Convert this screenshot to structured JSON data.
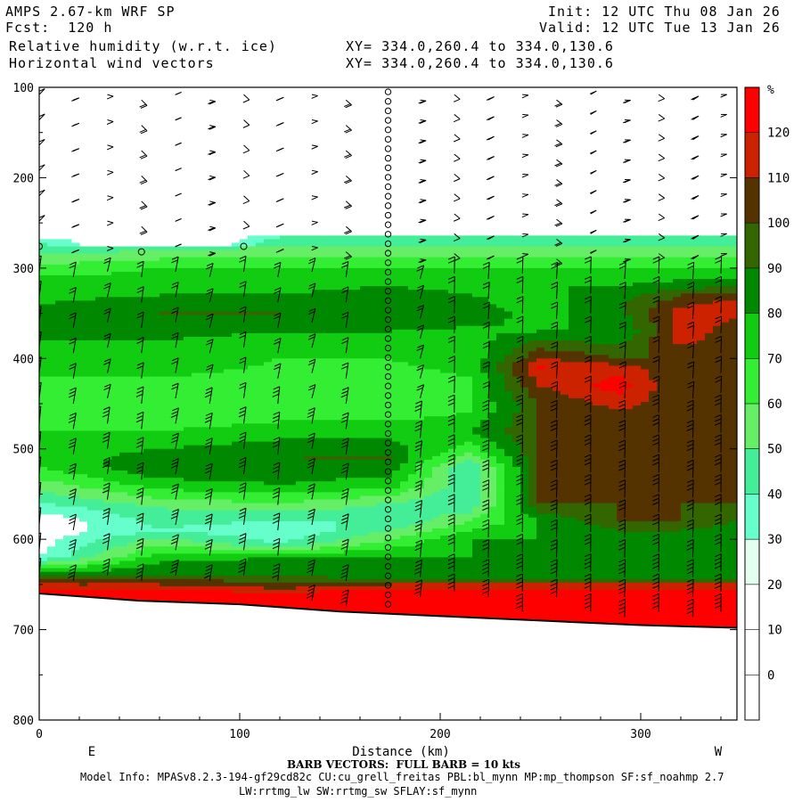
{
  "header": {
    "model": "AMPS 2.67-km WRF SP",
    "fcst": "Fcst:  120 h",
    "field1": "Relative humidity (w.r.t. ice)",
    "field2": "Horizontal wind vectors",
    "init": "Init: 12 UTC Thu 08 Jan 26",
    "valid": "Valid: 12 UTC Tue 13 Jan 26",
    "xy1": "XY= 334.0,260.4 to 334.0,130.6",
    "xy2": "XY= 334.0,260.4 to 334.0,130.6"
  },
  "footer": {
    "barb": "BARB VECTORS:  FULL BARB = 10 kts",
    "model_info": "Model Info: MPASv8.2.3-194-gf29cd82c CU:cu_grell_freitas PBL:bl_mynn MP:mp_thompson SF:sf_noahmp 2.7",
    "model_info2": "LW:rrtmg_lw SW:rrtmg_sw SFLAY:sf_mynn"
  },
  "chart_data": {
    "type": "heatmap",
    "xlabel": "Distance (km)",
    "ylabel": "",
    "x_left_label": "E",
    "x_right_label": "W",
    "xlim": [
      0,
      348
    ],
    "ylim": [
      800,
      100
    ],
    "xticks": [
      0,
      100,
      200,
      300
    ],
    "yticks": [
      100,
      200,
      300,
      400,
      500,
      600,
      700,
      800
    ],
    "colorbar": {
      "unit": "%",
      "levels": [
        0,
        10,
        20,
        30,
        40,
        50,
        60,
        70,
        80,
        90,
        100,
        110,
        120
      ],
      "colors": [
        "#ffffff",
        "#ffffff",
        "#ffffff",
        "#e4fff0",
        "#66ffcc",
        "#44ee99",
        "#66ee66",
        "#33ee33",
        "#11cc11",
        "#008800",
        "#336600",
        "#553300",
        "#cc2200",
        "#ff0000"
      ]
    },
    "rh_profile_note": "",
    "rh_columns": [
      {
        "x": 0,
        "layers": [
          [
            270,
            40
          ],
          [
            290,
            55
          ],
          [
            310,
            70
          ],
          [
            340,
            80
          ],
          [
            360,
            90
          ],
          [
            390,
            75
          ],
          [
            420,
            70
          ],
          [
            460,
            65
          ],
          [
            500,
            75
          ],
          [
            520,
            70
          ],
          [
            560,
            40
          ],
          [
            580,
            20
          ],
          [
            620,
            30
          ],
          [
            640,
            90
          ],
          [
            650,
            110
          ],
          [
            660,
            130
          ]
        ]
      },
      {
        "x": 60,
        "layers": [
          [
            275,
            40
          ],
          [
            285,
            55
          ],
          [
            300,
            70
          ],
          [
            330,
            80
          ],
          [
            350,
            90
          ],
          [
            380,
            80
          ],
          [
            420,
            70
          ],
          [
            470,
            65
          ],
          [
            500,
            80
          ],
          [
            520,
            90
          ],
          [
            540,
            75
          ],
          [
            565,
            50
          ],
          [
            590,
            40
          ],
          [
            610,
            65
          ],
          [
            625,
            80
          ],
          [
            640,
            90
          ],
          [
            650,
            110
          ],
          [
            660,
            130
          ]
        ]
      },
      {
        "x": 120,
        "layers": [
          [
            265,
            40
          ],
          [
            280,
            55
          ],
          [
            300,
            70
          ],
          [
            330,
            80
          ],
          [
            350,
            90
          ],
          [
            370,
            80
          ],
          [
            400,
            70
          ],
          [
            460,
            65
          ],
          [
            490,
            80
          ],
          [
            510,
            90
          ],
          [
            540,
            80
          ],
          [
            570,
            50
          ],
          [
            590,
            30
          ],
          [
            605,
            40
          ],
          [
            620,
            80
          ],
          [
            640,
            90
          ],
          [
            655,
            110
          ],
          [
            665,
            130
          ]
        ]
      },
      {
        "x": 175,
        "layers": [
          [
            265,
            40
          ],
          [
            280,
            55
          ],
          [
            300,
            70
          ],
          [
            330,
            85
          ],
          [
            345,
            90
          ],
          [
            370,
            80
          ],
          [
            400,
            70
          ],
          [
            460,
            65
          ],
          [
            490,
            80
          ],
          [
            510,
            90
          ],
          [
            540,
            75
          ],
          [
            560,
            50
          ],
          [
            580,
            40
          ],
          [
            600,
            60
          ],
          [
            620,
            80
          ],
          [
            640,
            80
          ],
          [
            650,
            110
          ],
          [
            660,
            130
          ]
        ]
      },
      {
        "x": 215,
        "layers": [
          [
            265,
            40
          ],
          [
            280,
            55
          ],
          [
            300,
            70
          ],
          [
            330,
            80
          ],
          [
            350,
            85
          ],
          [
            380,
            75
          ],
          [
            420,
            70
          ],
          [
            460,
            70
          ],
          [
            480,
            80
          ],
          [
            500,
            65
          ],
          [
            520,
            40
          ],
          [
            560,
            40
          ],
          [
            580,
            60
          ],
          [
            600,
            80
          ],
          [
            640,
            80
          ],
          [
            650,
            110
          ],
          [
            660,
            130
          ]
        ]
      },
      {
        "x": 250,
        "layers": [
          [
            265,
            40
          ],
          [
            280,
            55
          ],
          [
            300,
            70
          ],
          [
            320,
            80
          ],
          [
            340,
            75
          ],
          [
            370,
            80
          ],
          [
            390,
            100
          ],
          [
            410,
            120
          ],
          [
            450,
            100
          ],
          [
            480,
            100
          ],
          [
            560,
            100
          ],
          [
            580,
            80
          ],
          [
            640,
            80
          ],
          [
            650,
            110
          ],
          [
            660,
            130
          ]
        ]
      },
      {
        "x": 290,
        "layers": [
          [
            265,
            40
          ],
          [
            280,
            55
          ],
          [
            300,
            70
          ],
          [
            320,
            80
          ],
          [
            340,
            90
          ],
          [
            370,
            80
          ],
          [
            400,
            100
          ],
          [
            410,
            115
          ],
          [
            430,
            125
          ],
          [
            450,
            115
          ],
          [
            470,
            100
          ],
          [
            580,
            100
          ],
          [
            600,
            80
          ],
          [
            640,
            80
          ],
          [
            650,
            110
          ],
          [
            660,
            130
          ]
        ]
      },
      {
        "x": 320,
        "layers": [
          [
            265,
            40
          ],
          [
            280,
            55
          ],
          [
            300,
            70
          ],
          [
            320,
            85
          ],
          [
            330,
            100
          ],
          [
            350,
            115
          ],
          [
            380,
            115
          ],
          [
            400,
            100
          ],
          [
            580,
            100
          ],
          [
            600,
            80
          ],
          [
            640,
            80
          ],
          [
            650,
            110
          ],
          [
            660,
            130
          ]
        ]
      },
      {
        "x": 348,
        "layers": [
          [
            265,
            40
          ],
          [
            280,
            55
          ],
          [
            300,
            70
          ],
          [
            320,
            90
          ],
          [
            340,
            115
          ],
          [
            390,
            100
          ],
          [
            560,
            100
          ],
          [
            600,
            80
          ],
          [
            640,
            80
          ],
          [
            650,
            110
          ],
          [
            660,
            130
          ]
        ]
      }
    ],
    "terrain_pressure": [
      [
        0,
        660
      ],
      [
        50,
        668
      ],
      [
        100,
        672
      ],
      [
        150,
        680
      ],
      [
        200,
        685
      ],
      [
        250,
        690
      ],
      [
        300,
        695
      ],
      [
        348,
        698
      ]
    ],
    "barb_columns_x": [
      0,
      17,
      34,
      51,
      68,
      85,
      102,
      119,
      136,
      153,
      174,
      190,
      207,
      224,
      241,
      258,
      275,
      292,
      309,
      326,
      340
    ],
    "calm_column_x": 174
  }
}
